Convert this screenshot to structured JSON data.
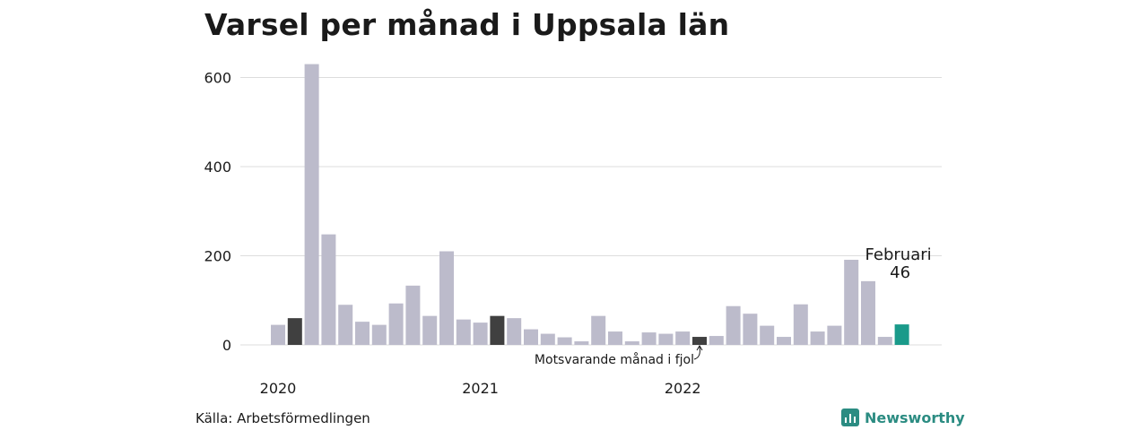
{
  "title": "Varsel per månad i Uppsala län",
  "source": "Källa: Arbetsförmedlingen",
  "brand": "Newsworthy",
  "annotation_prev": "Motsvarande månad i fjol",
  "highlight_month": "Februari",
  "highlight_value_label": "46",
  "colors": {
    "default": "#bcbbcb",
    "previous": "#404040",
    "current": "#1a9a8a",
    "grid": "#dddddd",
    "brand": "#2b8c82"
  },
  "chart_data": {
    "type": "bar",
    "title": "Varsel per månad i Uppsala län",
    "ylim": [
      0,
      650
    ],
    "yticks": [
      0,
      200,
      400,
      600
    ],
    "year_labels": [
      {
        "label": "2020",
        "index": 0
      },
      {
        "label": "2021",
        "index": 12
      },
      {
        "label": "2022",
        "index": 24
      }
    ],
    "values": [
      45,
      60,
      630,
      248,
      90,
      52,
      45,
      93,
      133,
      65,
      210,
      57,
      50,
      65,
      60,
      35,
      25,
      17,
      8,
      65,
      30,
      8,
      28,
      25,
      30,
      18,
      20,
      87,
      70,
      43,
      18,
      91,
      30,
      43,
      191,
      143,
      18,
      46
    ],
    "previous_year_indices": [
      1,
      13,
      25
    ],
    "current_index": 37,
    "grid": true
  }
}
